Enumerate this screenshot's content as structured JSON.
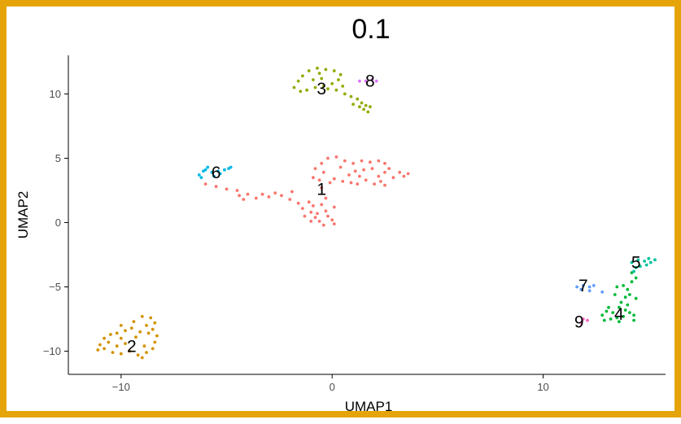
{
  "chart_data": {
    "type": "scatter",
    "title": "0.1",
    "xlabel": "UMAP1",
    "ylabel": "UMAP2",
    "xlim": [
      -12.5,
      15.8
    ],
    "ylim": [
      -11.8,
      13.0
    ],
    "x_ticks": [
      -10,
      0,
      10
    ],
    "y_ticks": [
      -10,
      -5,
      0,
      5,
      10
    ],
    "x_tick_labels": [
      "−10",
      "0",
      "10"
    ],
    "y_tick_labels": [
      "−10",
      "−5",
      "0",
      "5",
      "10"
    ],
    "grid": false,
    "legend": "none",
    "frame_color": "#E5A50A",
    "clusters": [
      {
        "label": "1",
        "color": "#F8766D",
        "label_pos": [
          -0.5,
          2.5
        ],
        "points": [
          [
            -6,
            3
          ],
          [
            -5.5,
            2.8
          ],
          [
            -5,
            2.6
          ],
          [
            -4.5,
            2.5
          ],
          [
            -4.4,
            2.1
          ],
          [
            -4,
            2.2
          ],
          [
            -4.2,
            1.8
          ],
          [
            -3.6,
            1.9
          ],
          [
            -3.3,
            2.2
          ],
          [
            -3,
            2
          ],
          [
            -2.7,
            2.3
          ],
          [
            -2.4,
            2.1
          ],
          [
            -2,
            1.8
          ],
          [
            -1.9,
            2.4
          ],
          [
            -1.6,
            1.5
          ],
          [
            -1.4,
            1.1
          ],
          [
            -1.1,
            1.6
          ],
          [
            -1,
            0.8
          ],
          [
            -0.8,
            0.4
          ],
          [
            -0.6,
            0.1
          ],
          [
            -0.4,
            -0.2
          ],
          [
            -0.2,
            0.5
          ],
          [
            0,
            0.2
          ],
          [
            0.1,
            -0.1
          ],
          [
            -0.5,
            1.4
          ],
          [
            -0.3,
            1.9
          ],
          [
            0.1,
            1.2
          ],
          [
            -1.3,
            0.5
          ],
          [
            -1.0,
            0.1
          ],
          [
            -0.7,
            0.7
          ],
          [
            -0.9,
            1.3
          ],
          [
            -0.3,
            0.9
          ],
          [
            -0.5,
            2.7
          ],
          [
            -0.6,
            3.3
          ],
          [
            -0.4,
            3.9
          ],
          [
            -0.5,
            4.6
          ],
          [
            -0.2,
            5
          ],
          [
            0.2,
            5.1
          ],
          [
            0.6,
            4.8
          ],
          [
            1,
            4.6
          ],
          [
            1.4,
            4.8
          ],
          [
            1.8,
            4.7
          ],
          [
            2.2,
            4.8
          ],
          [
            2.5,
            4.6
          ],
          [
            2.7,
            4.2
          ],
          [
            2.5,
            3.9
          ],
          [
            2.2,
            3.6
          ],
          [
            2.3,
            3.2
          ],
          [
            2.5,
            2.9
          ],
          [
            2.9,
            3.5
          ],
          [
            3.2,
            3.9
          ],
          [
            3.4,
            3.6
          ],
          [
            3.6,
            3.8
          ],
          [
            1.6,
            3.3
          ],
          [
            1.2,
            3.0
          ],
          [
            0.9,
            3.1
          ],
          [
            0.5,
            3.2
          ],
          [
            0.1,
            3.4
          ],
          [
            -0.1,
            3.1
          ],
          [
            1.1,
            4.0
          ],
          [
            1.5,
            4.1
          ],
          [
            1.9,
            4.2
          ],
          [
            2.0,
            3.0
          ],
          [
            1.3,
            3.6
          ],
          [
            0.8,
            3.7
          ],
          [
            0.4,
            4.3
          ],
          [
            -0.8,
            4.2
          ],
          [
            -0.9,
            3.5
          ]
        ]
      },
      {
        "label": "2",
        "color": "#D39200",
        "label_pos": [
          -9.5,
          -9.7
        ],
        "points": [
          [
            -11,
            -9.5
          ],
          [
            -10.8,
            -9
          ],
          [
            -10.5,
            -8.7
          ],
          [
            -10.2,
            -8.6
          ],
          [
            -10,
            -9
          ],
          [
            -9.8,
            -8.4
          ],
          [
            -9.4,
            -7.7
          ],
          [
            -9,
            -7.3
          ],
          [
            -8.6,
            -7.4
          ],
          [
            -8.4,
            -7.8
          ],
          [
            -8.5,
            -8.3
          ],
          [
            -8.3,
            -8.8
          ],
          [
            -8.4,
            -9.3
          ],
          [
            -8.5,
            -9.8
          ],
          [
            -8.8,
            -10.1
          ],
          [
            -9.2,
            -10.3
          ],
          [
            -9.6,
            -10
          ],
          [
            -10,
            -10.2
          ],
          [
            -10.4,
            -10.1
          ],
          [
            -10.8,
            -9.8
          ],
          [
            -11.1,
            -9.9
          ],
          [
            -9.8,
            -9.4
          ],
          [
            -9.3,
            -8.9
          ],
          [
            -9.1,
            -8.5
          ],
          [
            -8.9,
            -9.6
          ],
          [
            -10.2,
            -9.6
          ],
          [
            -9.5,
            -8.2
          ],
          [
            -8.8,
            -8
          ],
          [
            -10.6,
            -9.3
          ],
          [
            -9.0,
            -10.5
          ],
          [
            -8.7,
            -8.6
          ],
          [
            -10.0,
            -8.0
          ]
        ]
      },
      {
        "label": "3",
        "color": "#93AA00",
        "label_pos": [
          -0.5,
          10.3
        ],
        "points": [
          [
            -1.8,
            10.5
          ],
          [
            -1.6,
            11
          ],
          [
            -1.4,
            11.4
          ],
          [
            -1.1,
            11.8
          ],
          [
            -0.7,
            12
          ],
          [
            -0.3,
            11.9
          ],
          [
            0.1,
            11.8
          ],
          [
            0.4,
            11.5
          ],
          [
            0.3,
            11.1
          ],
          [
            0,
            10.8
          ],
          [
            -0.4,
            10.6
          ],
          [
            -0.8,
            10.5
          ],
          [
            -1.2,
            10.3
          ],
          [
            -0.5,
            11.2
          ],
          [
            -0.9,
            11.1
          ],
          [
            -0.2,
            10.4
          ],
          [
            0.2,
            10.3
          ],
          [
            0.6,
            10
          ],
          [
            0.9,
            9.8
          ],
          [
            1.2,
            9.6
          ],
          [
            1.4,
            9.3
          ],
          [
            1.6,
            9.1
          ],
          [
            1.8,
            9.0
          ],
          [
            1.5,
            8.8
          ],
          [
            1.7,
            8.6
          ],
          [
            1.3,
            9.0
          ],
          [
            -1.5,
            10.2
          ],
          [
            -0.6,
            11.6
          ],
          [
            0.5,
            10.6
          ],
          [
            1.0,
            9.2
          ]
        ]
      },
      {
        "label": "4",
        "color": "#00BA38",
        "label_pos": [
          13.6,
          -7.2
        ],
        "points": [
          [
            12.8,
            -7.2
          ],
          [
            13,
            -6.9
          ],
          [
            13.3,
            -7
          ],
          [
            13.5,
            -7.4
          ],
          [
            13.8,
            -7.3
          ],
          [
            14.1,
            -7
          ],
          [
            14.3,
            -7.2
          ],
          [
            13.9,
            -6.8
          ],
          [
            13.6,
            -6.6
          ],
          [
            13.7,
            -6.2
          ],
          [
            13.9,
            -5.8
          ],
          [
            14.1,
            -5.6
          ],
          [
            14,
            -5.2
          ],
          [
            13.8,
            -4.9
          ],
          [
            14.2,
            -4.6
          ],
          [
            14.4,
            -4.3
          ],
          [
            14.2,
            -3.9
          ],
          [
            13.4,
            -5.6
          ],
          [
            13.2,
            -7.5
          ],
          [
            14.3,
            -7.6
          ],
          [
            13.6,
            -7.7
          ],
          [
            12.9,
            -7.6
          ],
          [
            13.1,
            -6.6
          ],
          [
            14.0,
            -6.4
          ],
          [
            13.5,
            -5.0
          ],
          [
            14.4,
            -5.9
          ]
        ]
      },
      {
        "label": "5",
        "color": "#00C19F",
        "label_pos": [
          14.4,
          -3.2
        ],
        "points": [
          [
            14.2,
            -3.1
          ],
          [
            14.5,
            -2.9
          ],
          [
            14.8,
            -3
          ],
          [
            15.1,
            -3.1
          ],
          [
            15.3,
            -2.9
          ],
          [
            14.6,
            -3.4
          ],
          [
            14.3,
            -3.8
          ],
          [
            14.9,
            -3.3
          ],
          [
            15.0,
            -2.8
          ],
          [
            14.4,
            -3.5
          ]
        ]
      },
      {
        "label": "6",
        "color": "#00B9E3",
        "label_pos": [
          -5.5,
          3.8
        ],
        "points": [
          [
            -6.3,
            3.7
          ],
          [
            -6.1,
            4
          ],
          [
            -5.9,
            4.3
          ],
          [
            -5.7,
            3.9
          ],
          [
            -5.4,
            4
          ],
          [
            -5.1,
            4.1
          ],
          [
            -4.9,
            4.2
          ],
          [
            -4.8,
            4.3
          ],
          [
            -6.2,
            3.5
          ],
          [
            -5.6,
            3.6
          ],
          [
            -5.3,
            3.8
          ],
          [
            -6.0,
            4.1
          ]
        ]
      },
      {
        "label": "7",
        "color": "#619CFF",
        "label_pos": [
          11.9,
          -5.0
        ],
        "points": [
          [
            11.6,
            -5
          ],
          [
            11.9,
            -4.9
          ],
          [
            12.2,
            -5
          ],
          [
            12.4,
            -4.9
          ],
          [
            12.2,
            -5.3
          ],
          [
            11.8,
            -5.2
          ],
          [
            12.8,
            -5.4
          ]
        ]
      },
      {
        "label": "8",
        "color": "#DB72FB",
        "label_pos": [
          1.8,
          10.9
        ],
        "points": [
          [
            1.3,
            11
          ],
          [
            1.6,
            11
          ],
          [
            1.9,
            11.1
          ],
          [
            2.1,
            11
          ]
        ]
      },
      {
        "label": "9",
        "color": "#FF61C3",
        "label_pos": [
          11.7,
          -7.8
        ],
        "points": [
          [
            11.9,
            -7.5
          ],
          [
            12.1,
            -7.6
          ],
          [
            11.8,
            -7.8
          ]
        ]
      }
    ]
  }
}
